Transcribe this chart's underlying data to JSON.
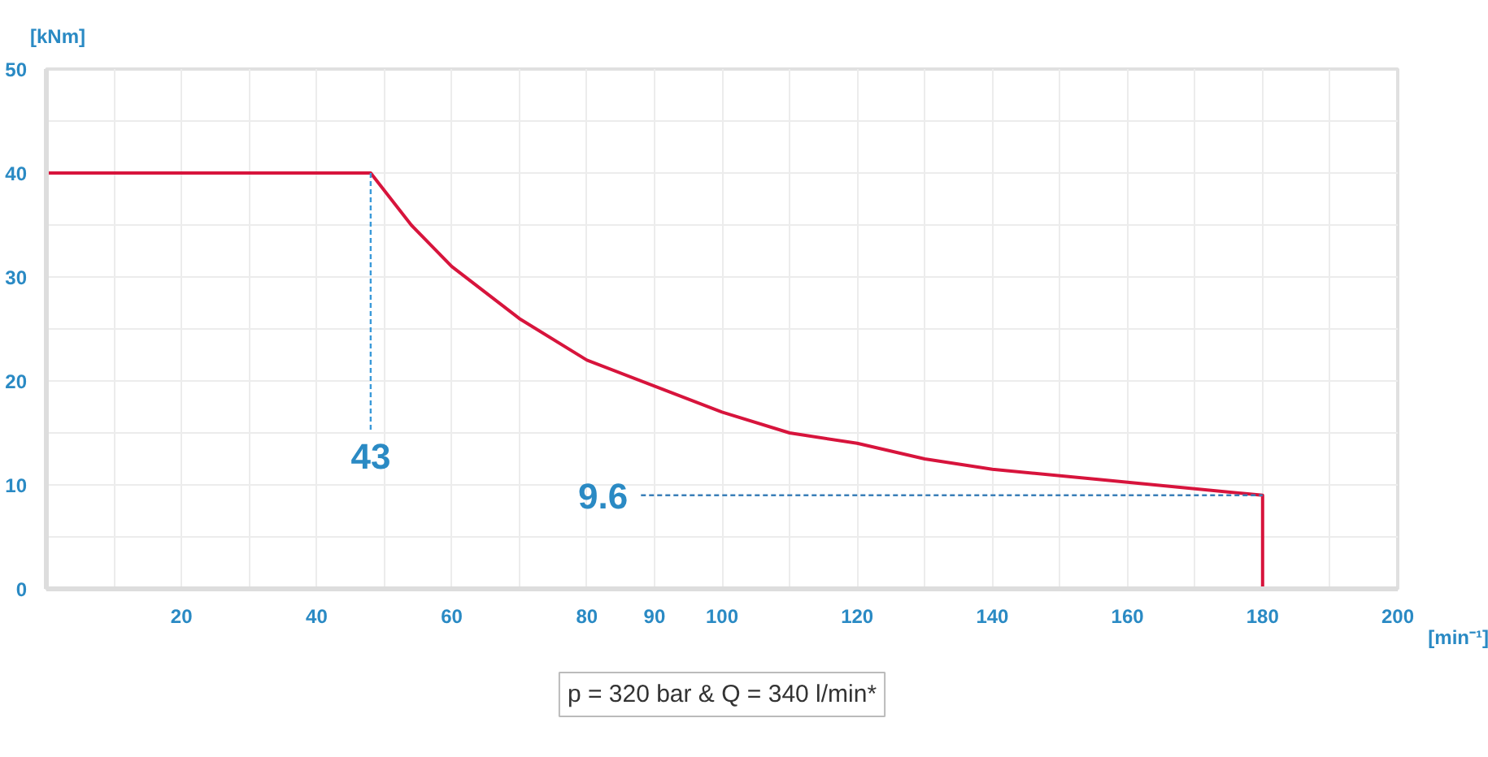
{
  "chart_data": {
    "type": "line",
    "xlabel": "[min⁻¹]",
    "ylabel": "[kNm]",
    "xlim": [
      0,
      200
    ],
    "ylim": [
      0,
      50
    ],
    "xticks": [
      {
        "value": 0,
        "label": null
      },
      {
        "value": 10,
        "label": null
      },
      20,
      {
        "value": 30,
        "label": null
      },
      40,
      {
        "value": 50,
        "label": null
      },
      60,
      {
        "value": 70,
        "label": null
      },
      80,
      {
        "value": 90,
        "label": "90"
      },
      100,
      {
        "value": 110,
        "label": null
      },
      120,
      {
        "value": 130,
        "label": null
      },
      140,
      {
        "value": 150,
        "label": null
      },
      160,
      {
        "value": 170,
        "label": null
      },
      {
        "value": 180,
        "label": "180"
      },
      {
        "value": 190,
        "label": null
      },
      200
    ],
    "yticks": [
      0,
      {
        "value": 5,
        "label": null
      },
      10,
      {
        "value": 15,
        "label": null
      },
      20,
      {
        "value": 25,
        "label": null
      },
      30,
      {
        "value": 35,
        "label": null
      },
      {
        "value": 40,
        "label": "40"
      },
      {
        "value": 45,
        "label": null
      },
      50
    ],
    "grid": true,
    "series": [
      {
        "color": "#d7143c",
        "line_style": "solid",
        "x": [
          0,
          48,
          54,
          60,
          70,
          80,
          90,
          100,
          110,
          120,
          130,
          140,
          156,
          180,
          180
        ],
        "values": [
          40,
          40,
          35,
          31,
          26,
          22,
          19.5,
          17,
          15,
          14,
          12.5,
          11.5,
          10.5,
          9,
          0
        ]
      },
      {
        "color": "#3a9ad9",
        "line_style": "dashed",
        "x": [
          48,
          48
        ],
        "values": [
          40,
          15
        ]
      },
      {
        "color": "#3a7fb8",
        "line_style": "dashed",
        "x": [
          88,
          180
        ],
        "values": [
          9,
          9
        ]
      }
    ],
    "annotations": [
      {
        "text": "43",
        "x": 48,
        "y": 15
      },
      {
        "text": "9.6",
        "x": 88,
        "y": 9
      },
      "p = 320 bar & Q = 340 l/min*"
    ]
  }
}
